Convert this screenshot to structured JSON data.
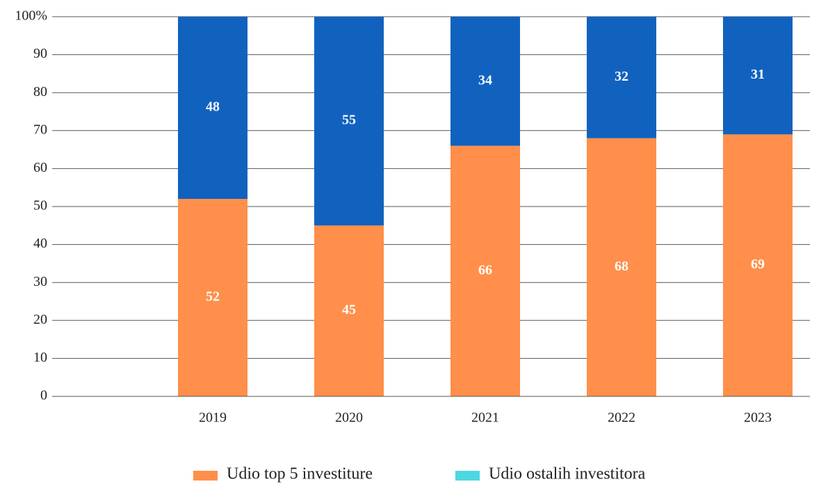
{
  "chart_data": {
    "type": "stacked_bar",
    "categories": [
      "2019",
      "2020",
      "2021",
      "2022",
      "2023"
    ],
    "series": [
      {
        "name": "Udio top 5 investiture",
        "color": "#ff8f4a",
        "values": [
          52,
          45,
          66,
          68,
          69
        ]
      },
      {
        "name": "Udio ostalih investitora",
        "color": "#1162bf",
        "legend_color": "#4fd6e3",
        "values": [
          48,
          55,
          34,
          32,
          31
        ]
      }
    ],
    "ylim": [
      0,
      100
    ],
    "yticks": [
      0,
      10,
      20,
      30,
      40,
      50,
      60,
      70,
      80,
      90,
      {
        "value": 100,
        "label": "100%"
      }
    ],
    "grid": true,
    "legend": "bottom"
  }
}
